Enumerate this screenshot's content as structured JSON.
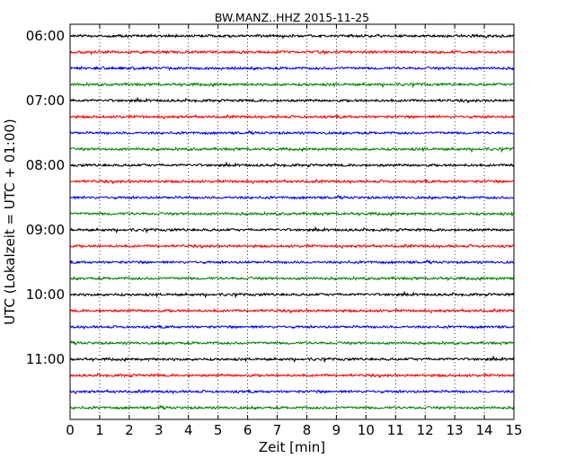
{
  "chart_data": {
    "type": "line",
    "title": "BW.MANZ..HHZ 2015-11-25",
    "xlabel": "Zeit  [min]",
    "ylabel": "UTC (Lokalzeit = UTC + 01:00)",
    "xlim": [
      0,
      15
    ],
    "x_ticks": [
      "0",
      "1",
      "2",
      "3",
      "4",
      "5",
      "6",
      "7",
      "8",
      "9",
      "10",
      "11",
      "12",
      "13",
      "14",
      "15"
    ],
    "y_tick_labels": [
      "06:00",
      "07:00",
      "08:00",
      "09:00",
      "10:00",
      "11:00"
    ],
    "trace_interval_minutes": 15,
    "trace_start_times": [
      "06:00",
      "06:15",
      "06:30",
      "06:45",
      "07:00",
      "07:15",
      "07:30",
      "07:45",
      "08:00",
      "08:15",
      "08:30",
      "08:45",
      "09:00",
      "09:15",
      "09:30",
      "09:45",
      "10:00",
      "10:15",
      "10:30",
      "10:45",
      "11:00",
      "11:15",
      "11:30",
      "11:45"
    ],
    "trace_colors": [
      "#000000",
      "#ff0000",
      "#0000ff",
      "#008000"
    ],
    "grid": {
      "x": "dotted",
      "y": false
    }
  }
}
